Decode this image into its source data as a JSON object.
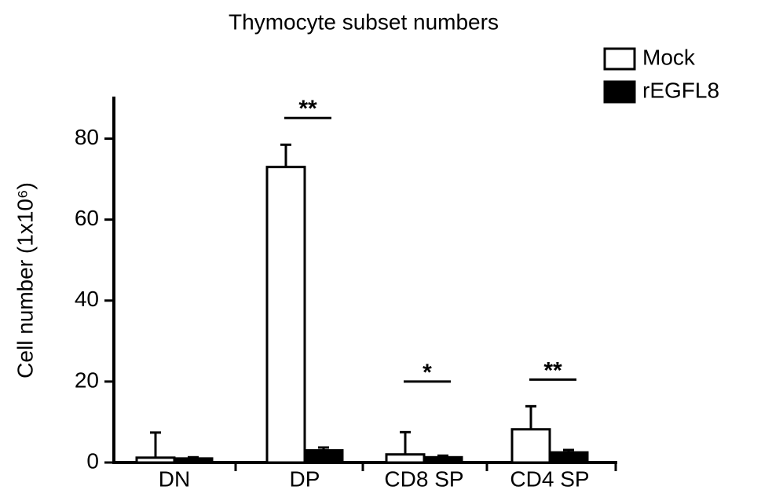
{
  "chart_data": {
    "type": "bar",
    "title": "Thymocyte subset numbers",
    "y_label": "Cell number  (1x10⁶)",
    "categories": [
      "DN",
      "DP",
      "CD8 SP",
      "CD4 SP"
    ],
    "series": [
      {
        "name": "Mock",
        "color": "#ffffff",
        "values": [
          1.2,
          73,
          2,
          8.2
        ],
        "errors": [
          6.2,
          5.5,
          5.5,
          5.7
        ]
      },
      {
        "name": "rEGFL8",
        "color": "#000000",
        "values": [
          1,
          3,
          1.3,
          2.5
        ],
        "errors": [
          0.3,
          0.7,
          0.4,
          0.6
        ]
      }
    ],
    "significance": [
      null,
      "**",
      "*",
      "**"
    ],
    "ylim": [
      0,
      90
    ],
    "yticks": [
      0,
      20,
      40,
      60,
      80
    ],
    "grid": false,
    "legend": "top-right"
  }
}
